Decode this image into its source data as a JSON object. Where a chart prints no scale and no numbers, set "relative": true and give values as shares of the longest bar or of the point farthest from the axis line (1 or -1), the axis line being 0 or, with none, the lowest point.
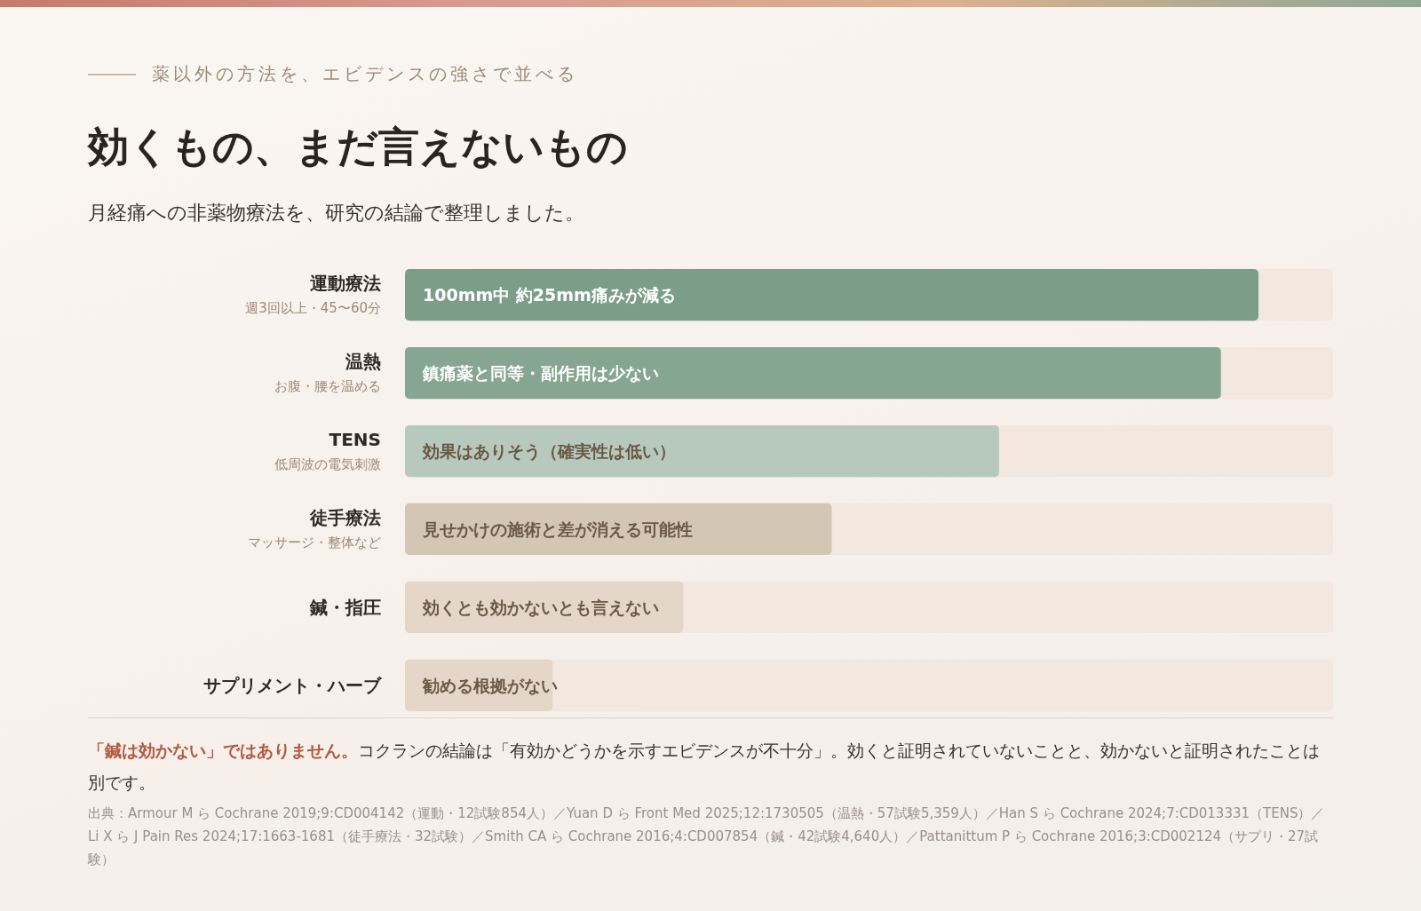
{
  "chart_data": {
    "type": "bar",
    "orientation": "horizontal",
    "relative": true,
    "title": "効くもの、まだ言えないもの",
    "subtitle": "月経痛への非薬物療法を、研究の結論で整理しました。",
    "categories": [
      "運動療法",
      "温熱",
      "TENS",
      "徒手療法",
      "鍼・指圧",
      "サプリメント・ハーブ"
    ],
    "values": [
      1,
      0.956,
      0.696,
      0.5,
      0.326,
      0.173
    ],
    "colors": [
      "#7c9e88",
      "#86a691",
      "#b7c9bc",
      "#d3c6b5",
      "#e4d7c9",
      "#e4d7c9"
    ],
    "annotations": [
      "薬以外の方法を、エビデンスの強さで並べる",
      "「鍼は効かない」ではありません。",
      "コクランの結論は「有効かどうかを示すエビデンスが不十分」。効くと証明されていないことと、効かないと証明されたことは別です。",
      "出典：Armour M ら Cochrane 2019;9:CD004142（運動・12試験854人）／Yuan D ら Front Med 2025;12:1730505（温熱・57試験5,359人）／Han S ら Cochrane 2024;7:CD013331（TENS）／Li X ら J Pain Res 2024;17:1663-1681（徒手療法・32試験）／Smith CA ら Cochrane 2016;4:CD007854（鍼・42試験4,640人）／Pattanittum P ら Cochrane 2016;3:CD002124（サプリ・27試験）",
      "100mm中 約25mm痛みが減る",
      "鎮痛薬と同等・副作用は少ない",
      "効果はありそう（確実性は低い）",
      "見せかけの施術と差が消える可能性",
      "効くとも効かないとも言えない",
      "勧める根拠がない",
      "週3回以上・45〜60分",
      "お腹・腰を温める",
      "低周波の電気刺激",
      "マッサージ・整体など"
    ]
  }
}
